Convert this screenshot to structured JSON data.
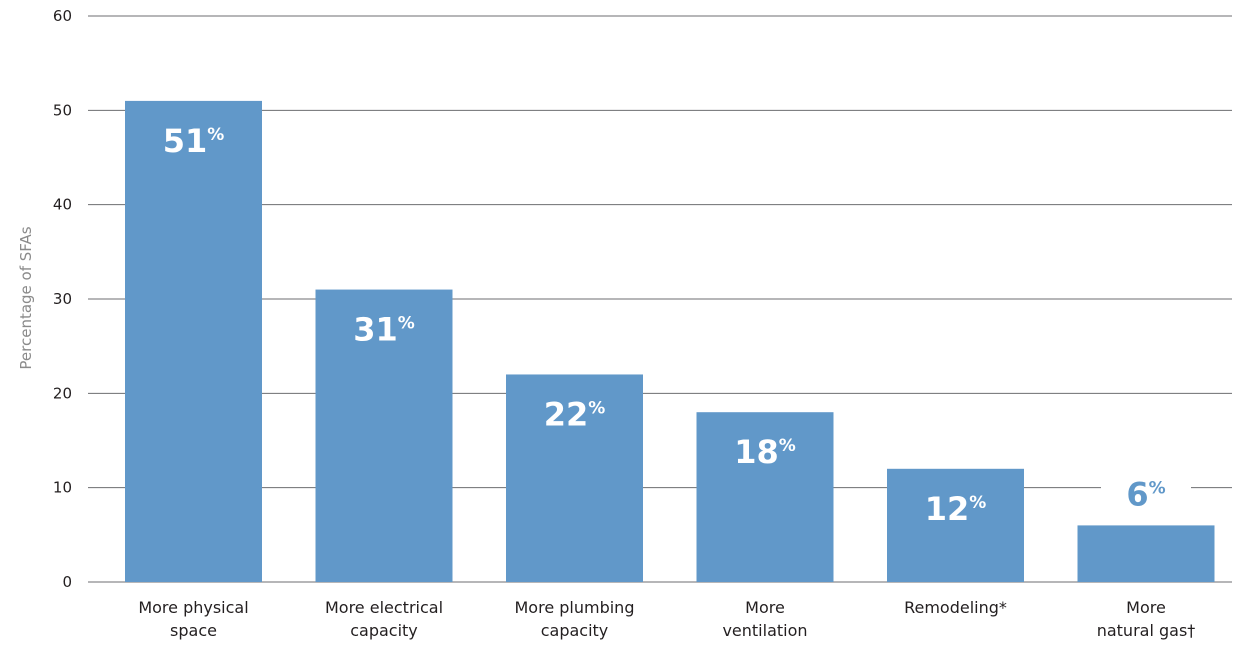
{
  "chart_data": {
    "type": "bar",
    "title": "",
    "xlabel": "",
    "ylabel": "Percentage of SFAs",
    "ylim": [
      0,
      60
    ],
    "yticks": [
      0,
      10,
      20,
      30,
      40,
      50,
      60
    ],
    "grid": true,
    "categories": [
      [
        "More physical",
        "space"
      ],
      [
        "More electrical",
        "capacity"
      ],
      [
        "More plumbing",
        "capacity"
      ],
      [
        "More",
        "ventilation"
      ],
      [
        "Remodeling*"
      ],
      [
        "More",
        "natural gas†"
      ]
    ],
    "values": [
      51,
      31,
      22,
      18,
      12,
      6
    ],
    "data_labels": [
      "51",
      "31",
      "22",
      "18",
      "12",
      "6"
    ],
    "data_label_suffix": "%",
    "colors": {
      "bar": "#6198c9",
      "label_inside": "#ffffff",
      "label_outside": "#6198c9",
      "grid": "#6d6e71",
      "text": "#231f20",
      "axis_label": "#8a8a8a"
    }
  }
}
